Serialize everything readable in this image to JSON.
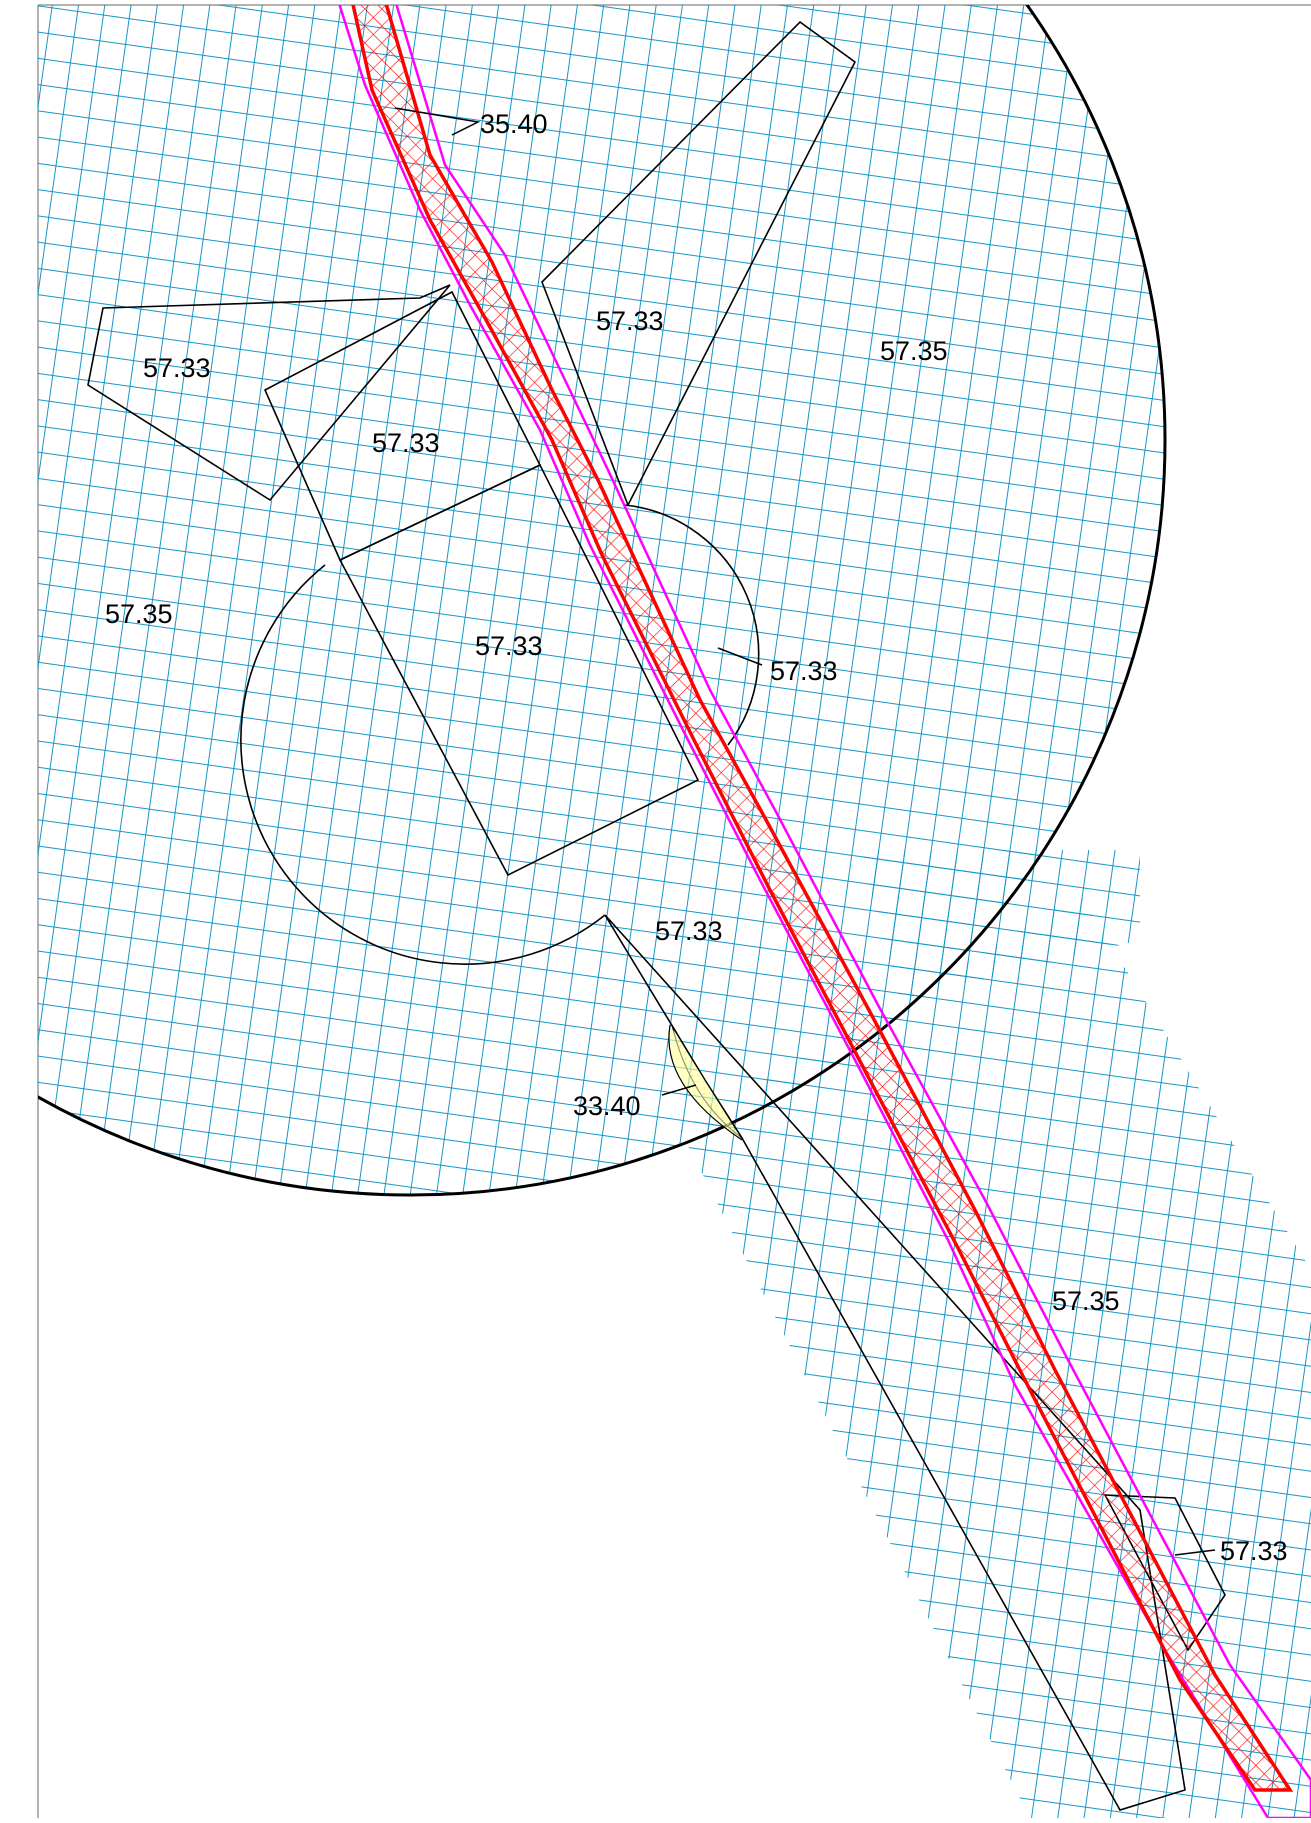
{
  "map": {
    "colors": {
      "grid": "#1497c8",
      "boundary": "#000000",
      "road_fill": "#ff0000",
      "road_outline": "#ff00ff",
      "special_fill": "#ffff66"
    },
    "labels": {
      "road": "35.40",
      "zone_north_a": "57.33",
      "zone_west_a": "57.33",
      "zone_west_b": "57.33",
      "zone_center": "57.33",
      "zone_east_small": "57.33",
      "zone_south_tongue": "57.33",
      "zone_south_east": "57.33",
      "base_north_east": "57.35",
      "base_west": "57.35",
      "base_south": "57.35",
      "special": "33.40"
    }
  }
}
